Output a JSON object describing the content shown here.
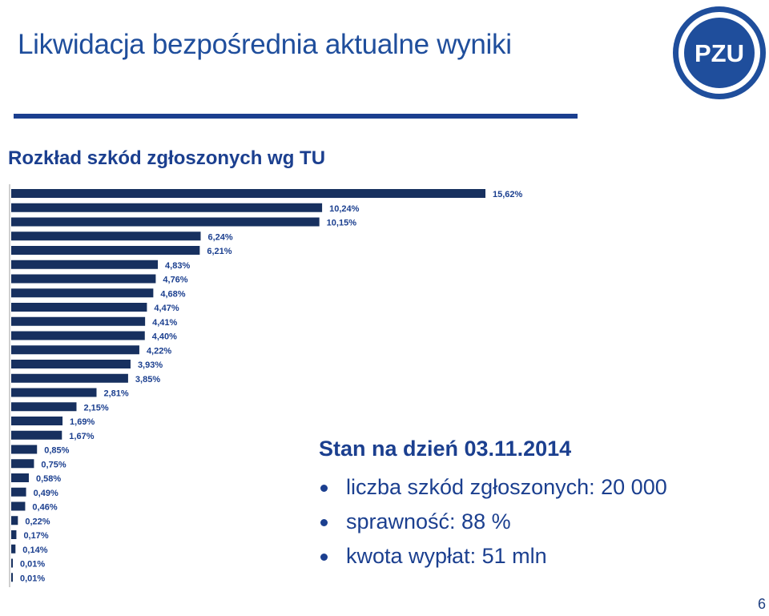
{
  "slide": {
    "title": "Likwidacja bezpośrednia  aktualne wyniki",
    "subtitle": "Rozkład szkód zgłoszonych wg TU",
    "page_number": "6"
  },
  "logo": {
    "text": "PZU",
    "color": "#1f4e9c"
  },
  "info": {
    "heading": "Stan na dzień 03.11.2014",
    "items": [
      "liczba szkód zgłoszonych: 20 000",
      "sprawność: 88 %",
      "kwota wypłat: 51 mln"
    ]
  },
  "chart_data": {
    "type": "bar",
    "orientation": "horizontal",
    "bar_color": "#17305f",
    "values": [
      15.62,
      10.24,
      10.15,
      6.24,
      6.21,
      4.83,
      4.76,
      4.68,
      4.47,
      4.41,
      4.4,
      4.22,
      3.93,
      3.85,
      2.81,
      2.15,
      1.69,
      1.67,
      0.85,
      0.75,
      0.58,
      0.49,
      0.46,
      0.22,
      0.17,
      0.14,
      0.01,
      0.01
    ],
    "labels": [
      "15,62%",
      "10,24%",
      "10,15%",
      "6,24%",
      "6,21%",
      "4,83%",
      "4,76%",
      "4,68%",
      "4,47%",
      "4,41%",
      "4,40%",
      "4,22%",
      "3,93%",
      "3,85%",
      "2,81%",
      "2,15%",
      "1,69%",
      "1,67%",
      "0,85%",
      "0,75%",
      "0,58%",
      "0,49%",
      "0,46%",
      "0,22%",
      "0,17%",
      "0,14%",
      "0,01%",
      "0,01%"
    ],
    "title": "",
    "xlabel": "",
    "ylabel": "",
    "grid": false,
    "legend": "none"
  }
}
